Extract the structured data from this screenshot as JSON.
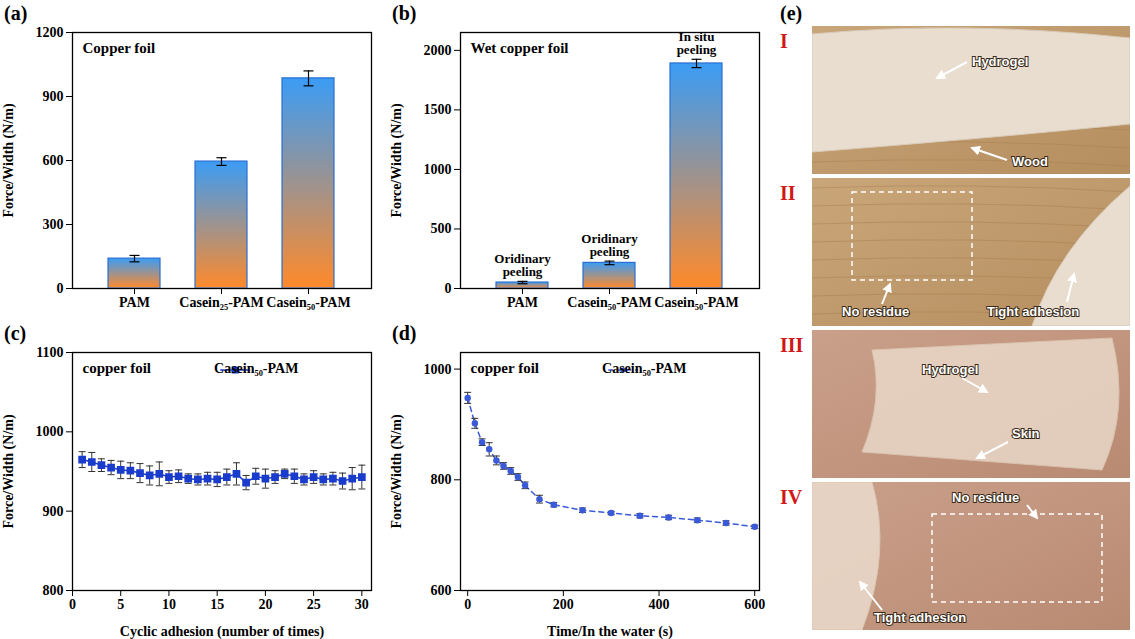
{
  "chart_data": [
    {
      "type": "bar",
      "label": "(a)",
      "title": "Copper foil",
      "categories": [
        "PAM",
        "Casein₂₅-PAM",
        "Casein₅₀-PAM"
      ],
      "values": [
        140,
        595,
        985
      ],
      "errors": [
        15,
        18,
        35
      ],
      "y_label": "Force/Width (N/m)",
      "ylim": [
        0,
        1200
      ],
      "yticks": [
        0,
        300,
        600,
        900,
        1200
      ],
      "color": "#3b9cf5"
    },
    {
      "type": "bar",
      "label": "(b)",
      "title": "Wet copper foil",
      "categories": [
        "PAM",
        "Casein₅₀-PAM",
        "Casein₅₀-PAM"
      ],
      "values": [
        50,
        215,
        1890
      ],
      "errors": [
        10,
        15,
        35
      ],
      "annotations": [
        "Oridinary peeling",
        "Oridinary peeling",
        "In situ peeling"
      ],
      "y_label": "Force/Width (N/m)",
      "ylim": [
        0,
        2150
      ],
      "yticks": [
        0,
        500,
        1000,
        1500,
        2000
      ],
      "color": "#3b9cf5"
    },
    {
      "type": "line",
      "label": "(c)",
      "title": "copper foil",
      "x": [
        1,
        2,
        3,
        4,
        5,
        6,
        7,
        8,
        9,
        10,
        11,
        12,
        13,
        14,
        15,
        16,
        17,
        18,
        19,
        20,
        21,
        22,
        23,
        24,
        25,
        26,
        27,
        28,
        29,
        30
      ],
      "series": [
        {
          "name": "Casein₅₀-PAM",
          "color": "#1a3ccc",
          "marker": "square",
          "line_style": "solid",
          "values": [
            965,
            962,
            958,
            955,
            952,
            951,
            948,
            945,
            947,
            943,
            944,
            941,
            940,
            941,
            940,
            943,
            947,
            936,
            944,
            941,
            943,
            947,
            944,
            940,
            943,
            940,
            941,
            938,
            941,
            943
          ],
          "errors": [
            10,
            12,
            8,
            9,
            11,
            10,
            12,
            12,
            15,
            8,
            8,
            6,
            7,
            8,
            9,
            10,
            14,
            9,
            10,
            12,
            8,
            6,
            9,
            7,
            8,
            7,
            8,
            10,
            14,
            15
          ]
        }
      ],
      "x_label": "Cyclic adhesion (number of times)",
      "y_label": "Force/Width (N/m)",
      "xlim": [
        0,
        31
      ],
      "xticks": [
        0,
        5,
        10,
        15,
        20,
        25,
        30
      ],
      "ylim": [
        800,
        1100
      ],
      "yticks": [
        800,
        900,
        1000,
        1100
      ],
      "legend": "top-right"
    },
    {
      "type": "line",
      "label": "(d)",
      "title": "copper foil",
      "x": [
        0,
        15,
        30,
        45,
        60,
        75,
        90,
        105,
        120,
        150,
        180,
        240,
        300,
        360,
        420,
        480,
        540,
        600
      ],
      "series": [
        {
          "name": "Casein₅₀-PAM",
          "color": "#3a5ad8",
          "marker": "circle",
          "line_style": "dashed",
          "values": [
            948,
            902,
            868,
            855,
            835,
            825,
            816,
            805,
            790,
            765,
            755,
            745,
            740,
            735,
            732,
            727,
            722,
            715
          ],
          "errors": [
            10,
            9,
            6,
            12,
            8,
            6,
            6,
            6,
            6,
            7,
            4,
            4,
            3,
            4,
            4,
            4,
            4,
            3
          ]
        }
      ],
      "x_label": "Time/In the water (s)",
      "y_label": "Force/Width (N/m)",
      "xlim": [
        -15,
        610
      ],
      "xticks": [
        0,
        200,
        400,
        600
      ],
      "ylim": [
        600,
        1030
      ],
      "yticks": [
        600,
        800,
        1000
      ],
      "legend": "top-right"
    }
  ],
  "photo_panel": {
    "label": "(e)",
    "panels": [
      {
        "label": "I",
        "texts": [
          "Hydrogel",
          "Wood"
        ]
      },
      {
        "label": "II",
        "texts": [
          "No residue",
          "Tight adhesion"
        ]
      },
      {
        "label": "III",
        "texts": [
          "Hydrogel",
          "Skin"
        ]
      },
      {
        "label": "IV",
        "texts": [
          "No residue",
          "Tight adhesion"
        ]
      }
    ]
  }
}
